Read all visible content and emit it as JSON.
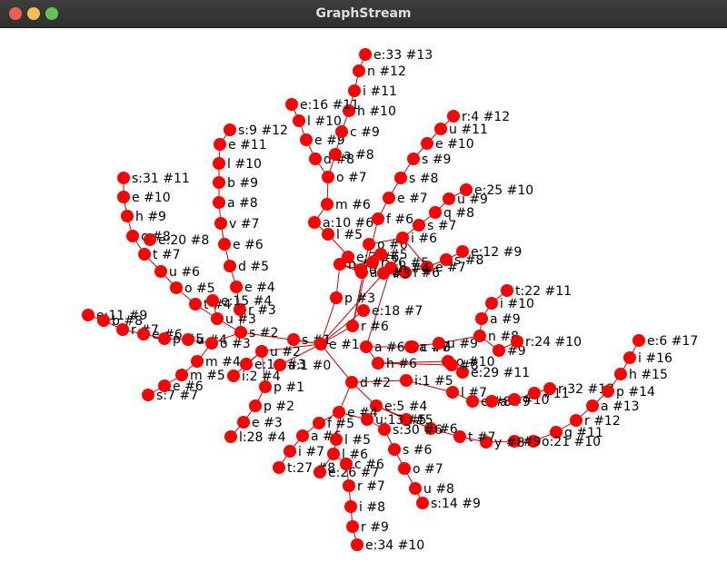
{
  "window": {
    "title": "GraphStream",
    "controls": [
      "close",
      "minimize",
      "maximize"
    ]
  },
  "graph": {
    "node_color": "#ff0000",
    "edge_color": "#cc0000",
    "label_color": "#000000",
    "nodes": [
      {
        "id": "r0",
        "label": "e:33 #13"
      },
      {
        "id": "r1",
        "label": "n #12"
      },
      {
        "id": "r2",
        "label": "i #11"
      },
      {
        "id": "r3",
        "label": "h #10"
      },
      {
        "id": "r4",
        "label": "e:16 #11"
      },
      {
        "id": "r5",
        "label": "l #10"
      },
      {
        "id": "r6",
        "label": "e #9"
      },
      {
        "id": "r7",
        "label": "c #9"
      },
      {
        "id": "r8",
        "label": "d #8"
      },
      {
        "id": "r9",
        "label": "a #8"
      },
      {
        "id": "r10",
        "label": "o #7"
      },
      {
        "id": "r11",
        "label": "m #6"
      },
      {
        "id": "r12",
        "label": "a:10 #6"
      },
      {
        "id": "r13",
        "label": "l #5"
      },
      {
        "id": "r14",
        "label": "s:9 #12"
      },
      {
        "id": "r15",
        "label": "e #11"
      },
      {
        "id": "r16",
        "label": "l #10"
      },
      {
        "id": "r17",
        "label": "b #9"
      },
      {
        "id": "r18",
        "label": "a #8"
      },
      {
        "id": "r19",
        "label": "v #7"
      },
      {
        "id": "r20",
        "label": "e #6"
      },
      {
        "id": "r21",
        "label": "d #5"
      },
      {
        "id": "r22",
        "label": "e #4"
      },
      {
        "id": "r23",
        "label": "r #3"
      },
      {
        "id": "r24",
        "label": "s:31 #11"
      },
      {
        "id": "r25",
        "label": "e #10"
      },
      {
        "id": "r26",
        "label": "h #9"
      },
      {
        "id": "r27",
        "label": "c #8"
      },
      {
        "id": "r28",
        "label": "e:20 #8"
      },
      {
        "id": "r29",
        "label": "t #7"
      },
      {
        "id": "r30",
        "label": "u #6"
      },
      {
        "id": "r31",
        "label": "o #5"
      },
      {
        "id": "r32",
        "label": "t #4"
      },
      {
        "id": "r33",
        "label": "e:15 #4"
      },
      {
        "id": "r34",
        "label": "u #3"
      },
      {
        "id": "r35",
        "label": "s #2"
      },
      {
        "id": "r36",
        "label": "e:11 #9"
      },
      {
        "id": "r37",
        "label": "b #8"
      },
      {
        "id": "r38",
        "label": "r #7"
      },
      {
        "id": "r39",
        "label": "e #6"
      },
      {
        "id": "r40",
        "label": "p #5"
      },
      {
        "id": "r41",
        "label": "u #4"
      },
      {
        "id": "r42",
        "label": "o #3"
      },
      {
        "id": "r43",
        "label": "m #4"
      },
      {
        "id": "r44",
        "label": "m #5"
      },
      {
        "id": "r45",
        "label": "e #6"
      },
      {
        "id": "r46",
        "label": "s:7 #7"
      },
      {
        "id": "r47",
        "label": "i:2 #4"
      },
      {
        "id": "r48",
        "label": "e:19 #3"
      },
      {
        "id": "r49",
        "label": "u #2"
      },
      {
        "id": "r50",
        "label": "a:1 #0"
      },
      {
        "id": "r51",
        "label": "p #1"
      },
      {
        "id": "r52",
        "label": "p #2"
      },
      {
        "id": "r53",
        "label": "e #3"
      },
      {
        "id": "r54",
        "label": "l:28 #4"
      },
      {
        "id": "r55",
        "label": "s #1"
      },
      {
        "id": "r56",
        "label": "e #1"
      },
      {
        "id": "r57",
        "label": "p #3"
      },
      {
        "id": "r58",
        "label": "n #4"
      },
      {
        "id": "r59",
        "label": "o #5"
      },
      {
        "id": "r60",
        "label": "e:3 #6"
      },
      {
        "id": "r61",
        "label": "r:26 #5"
      },
      {
        "id": "r62",
        "label": "a #5"
      },
      {
        "id": "r63",
        "label": "e:18 #7"
      },
      {
        "id": "r64",
        "label": "r #6"
      },
      {
        "id": "r65",
        "label": "f #6"
      },
      {
        "id": "r66",
        "label": "o #6"
      },
      {
        "id": "r67",
        "label": "s #7"
      },
      {
        "id": "r68",
        "label": "e #7"
      },
      {
        "id": "r69",
        "label": "s #8"
      },
      {
        "id": "r70",
        "label": "s #9"
      },
      {
        "id": "r71",
        "label": "e #10"
      },
      {
        "id": "r72",
        "label": "u #11"
      },
      {
        "id": "r73",
        "label": "r:4 #12"
      },
      {
        "id": "r74",
        "label": "q #8"
      },
      {
        "id": "r75",
        "label": "u #9"
      },
      {
        "id": "r76",
        "label": "e:25 #10"
      },
      {
        "id": "r77",
        "label": "i #6"
      },
      {
        "id": "r78",
        "label": "e:12 #9"
      },
      {
        "id": "r79",
        "label": "s #8"
      },
      {
        "id": "r80",
        "label": "e #7"
      },
      {
        "id": "r81",
        "label": "l #6"
      },
      {
        "id": "r82",
        "label": "#5"
      },
      {
        "id": "r83",
        "label": "h #4"
      },
      {
        "id": "r84",
        "label": "#3"
      },
      {
        "id": "r85",
        "label": "a #6"
      },
      {
        "id": "r86",
        "label": "c #8"
      },
      {
        "id": "r87",
        "label": "a #7"
      },
      {
        "id": "r88",
        "label": "u #9"
      },
      {
        "id": "r89",
        "label": "n #8"
      },
      {
        "id": "r90",
        "label": "a #9"
      },
      {
        "id": "r91",
        "label": "i #10"
      },
      {
        "id": "r92",
        "label": "t:22 #11"
      },
      {
        "id": "r93",
        "label": "#9"
      },
      {
        "id": "r94",
        "label": "r:24 #10"
      },
      {
        "id": "r95",
        "label": "h #6"
      },
      {
        "id": "r96",
        "label": "o #10"
      },
      {
        "id": "r97",
        "label": "e:29 #11"
      },
      {
        "id": "r98",
        "label": "#8"
      },
      {
        "id": "r99",
        "label": "i:1 #5"
      },
      {
        "id": "r100",
        "label": "l #7"
      },
      {
        "id": "r101",
        "label": "e #8"
      },
      {
        "id": "r102",
        "label": "a #9"
      },
      {
        "id": "r103",
        "label": "#10"
      },
      {
        "id": "r104",
        "label": "#11"
      },
      {
        "id": "r105",
        "label": "r:32 #13"
      },
      {
        "id": "r106",
        "label": "g #11"
      },
      {
        "id": "r107",
        "label": "r #12"
      },
      {
        "id": "r108",
        "label": "a #13"
      },
      {
        "id": "r109",
        "label": "p #14"
      },
      {
        "id": "r110",
        "label": "h #15"
      },
      {
        "id": "r111",
        "label": "i #16"
      },
      {
        "id": "r112",
        "label": "e:6 #17"
      },
      {
        "id": "r113",
        "label": "o:21 #10"
      },
      {
        "id": "r114",
        "label": "#9"
      },
      {
        "id": "r115",
        "label": "y #8"
      },
      {
        "id": "r116",
        "label": "t #7"
      },
      {
        "id": "r117",
        "label": "#6"
      },
      {
        "id": "r118",
        "label": "#5"
      },
      {
        "id": "r119",
        "label": "d #2"
      },
      {
        "id": "r120",
        "label": "e:5 #4"
      },
      {
        "id": "r121",
        "label": "e #4"
      },
      {
        "id": "r122",
        "label": "f #5"
      },
      {
        "id": "r123",
        "label": "a #6"
      },
      {
        "id": "r124",
        "label": "i #7"
      },
      {
        "id": "r125",
        "label": "t:27 #8"
      },
      {
        "id": "r126",
        "label": "l #5"
      },
      {
        "id": "r127",
        "label": "l #6"
      },
      {
        "id": "r128",
        "label": "e:26 #7"
      },
      {
        "id": "r129",
        "label": "c #6"
      },
      {
        "id": "r130",
        "label": "r #7"
      },
      {
        "id": "r131",
        "label": "i #8"
      },
      {
        "id": "r132",
        "label": "r #9"
      },
      {
        "id": "r133",
        "label": "e:34 #10"
      },
      {
        "id": "r134",
        "label": "u:13 #5"
      },
      {
        "id": "r135",
        "label": "s:30 #6"
      },
      {
        "id": "r136",
        "label": "s #6"
      },
      {
        "id": "r137",
        "label": "o #7"
      },
      {
        "id": "r138",
        "label": "u #8"
      },
      {
        "id": "r139",
        "label": "s:14 #9"
      }
    ],
    "edges": [
      [
        "r0",
        "r1"
      ],
      [
        "r1",
        "r2"
      ],
      [
        "r2",
        "r3"
      ],
      [
        "r3",
        "r7"
      ],
      [
        "r4",
        "r5"
      ],
      [
        "r5",
        "r6"
      ],
      [
        "r6",
        "r8"
      ],
      [
        "r7",
        "r9"
      ],
      [
        "r9",
        "r10"
      ],
      [
        "r8",
        "r10"
      ],
      [
        "r10",
        "r11"
      ],
      [
        "r11",
        "r12"
      ],
      [
        "r12",
        "r13"
      ],
      [
        "r13",
        "r59"
      ],
      [
        "r14",
        "r15"
      ],
      [
        "r15",
        "r16"
      ],
      [
        "r16",
        "r17"
      ],
      [
        "r17",
        "r18"
      ],
      [
        "r18",
        "r19"
      ],
      [
        "r19",
        "r20"
      ],
      [
        "r20",
        "r21"
      ],
      [
        "r21",
        "r22"
      ],
      [
        "r22",
        "r23"
      ],
      [
        "r23",
        "r35"
      ],
      [
        "r24",
        "r25"
      ],
      [
        "r25",
        "r26"
      ],
      [
        "r26",
        "r27"
      ],
      [
        "r27",
        "r29"
      ],
      [
        "r29",
        "r30"
      ],
      [
        "r30",
        "r31"
      ],
      [
        "r31",
        "r32"
      ],
      [
        "r32",
        "r34"
      ],
      [
        "r34",
        "r35"
      ],
      [
        "r33",
        "r34"
      ],
      [
        "r36",
        "r37"
      ],
      [
        "r37",
        "r38"
      ],
      [
        "r38",
        "r39"
      ],
      [
        "r39",
        "r40"
      ],
      [
        "r40",
        "r41"
      ],
      [
        "r41",
        "r42"
      ],
      [
        "r42",
        "r35"
      ],
      [
        "r42",
        "r43"
      ],
      [
        "r43",
        "r44"
      ],
      [
        "r44",
        "r45"
      ],
      [
        "r45",
        "r46"
      ],
      [
        "r49",
        "r47"
      ],
      [
        "r49",
        "r48"
      ],
      [
        "r49",
        "r56"
      ],
      [
        "r49",
        "r51"
      ],
      [
        "r51",
        "r52"
      ],
      [
        "r52",
        "r53"
      ],
      [
        "r53",
        "r54"
      ],
      [
        "r35",
        "r56"
      ],
      [
        "r50",
        "r56"
      ],
      [
        "r56",
        "r55"
      ],
      [
        "r56",
        "r57"
      ],
      [
        "r57",
        "r58"
      ],
      [
        "r58",
        "r59"
      ],
      [
        "r59",
        "r60"
      ],
      [
        "r59",
        "r61"
      ],
      [
        "r58",
        "r62"
      ],
      [
        "r56",
        "r63"
      ],
      [
        "r56",
        "r64"
      ],
      [
        "r64",
        "r65"
      ],
      [
        "r64",
        "r66"
      ],
      [
        "r66",
        "r77"
      ],
      [
        "r65",
        "r68"
      ],
      [
        "r68",
        "r69"
      ],
      [
        "r69",
        "r70"
      ],
      [
        "r70",
        "r71"
      ],
      [
        "r71",
        "r72"
      ],
      [
        "r72",
        "r73"
      ],
      [
        "r77",
        "r67"
      ],
      [
        "r67",
        "r74"
      ],
      [
        "r74",
        "r75"
      ],
      [
        "r75",
        "r76"
      ],
      [
        "r77",
        "r80"
      ],
      [
        "r80",
        "r79"
      ],
      [
        "r79",
        "r78"
      ],
      [
        "r80",
        "r81"
      ],
      [
        "r56",
        "r84"
      ],
      [
        "r84",
        "r83"
      ],
      [
        "r84",
        "r82"
      ],
      [
        "r83",
        "r85"
      ],
      [
        "r85",
        "r86"
      ],
      [
        "r86",
        "r87"
      ],
      [
        "r87",
        "r88"
      ],
      [
        "r88",
        "r89"
      ],
      [
        "r89",
        "r90"
      ],
      [
        "r90",
        "r91"
      ],
      [
        "r91",
        "r92"
      ],
      [
        "r89",
        "r93"
      ],
      [
        "r93",
        "r94"
      ],
      [
        "r85",
        "r95"
      ],
      [
        "r95",
        "r96"
      ],
      [
        "r96",
        "r97"
      ],
      [
        "r95",
        "r98"
      ],
      [
        "r56",
        "r119"
      ],
      [
        "r119",
        "r99"
      ],
      [
        "r99",
        "r100"
      ],
      [
        "r100",
        "r101"
      ],
      [
        "r101",
        "r102"
      ],
      [
        "r102",
        "r103"
      ],
      [
        "r103",
        "r104"
      ],
      [
        "r104",
        "r105"
      ],
      [
        "r119",
        "r120"
      ],
      [
        "r120",
        "r117"
      ],
      [
        "r117",
        "r116"
      ],
      [
        "r116",
        "r115"
      ],
      [
        "r115",
        "r114"
      ],
      [
        "r114",
        "r113"
      ],
      [
        "r113",
        "r106"
      ],
      [
        "r106",
        "r107"
      ],
      [
        "r107",
        "r108"
      ],
      [
        "r108",
        "r109"
      ],
      [
        "r109",
        "r110"
      ],
      [
        "r110",
        "r111"
      ],
      [
        "r111",
        "r112"
      ],
      [
        "r120",
        "r118"
      ],
      [
        "r119",
        "r121"
      ],
      [
        "r121",
        "r122"
      ],
      [
        "r122",
        "r123"
      ],
      [
        "r123",
        "r124"
      ],
      [
        "r124",
        "r125"
      ],
      [
        "r121",
        "r126"
      ],
      [
        "r126",
        "r127"
      ],
      [
        "r127",
        "r128"
      ],
      [
        "r127",
        "r129"
      ],
      [
        "r129",
        "r130"
      ],
      [
        "r130",
        "r131"
      ],
      [
        "r131",
        "r132"
      ],
      [
        "r132",
        "r133"
      ],
      [
        "r121",
        "r134"
      ],
      [
        "r134",
        "r135"
      ],
      [
        "r135",
        "r136"
      ],
      [
        "r136",
        "r137"
      ],
      [
        "r137",
        "r138"
      ],
      [
        "r138",
        "r139"
      ]
    ]
  }
}
